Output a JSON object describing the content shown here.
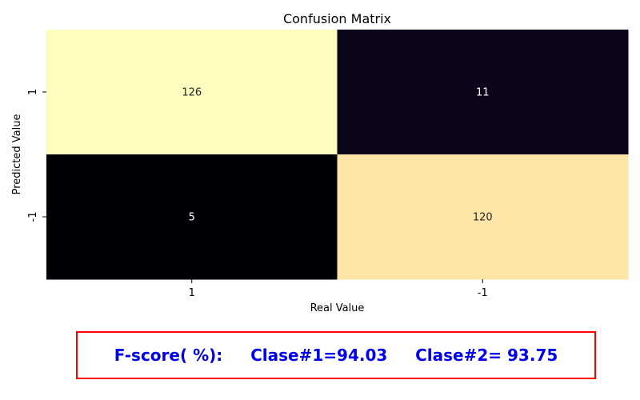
{
  "chart_data": {
    "type": "heatmap",
    "title": "Confusion Matrix",
    "xlabel": "Real Value",
    "ylabel": "Predicted Value",
    "x_categories": [
      "1",
      "-1"
    ],
    "y_categories": [
      "1",
      "-1"
    ],
    "values": [
      [
        126,
        11
      ],
      [
        5,
        120
      ]
    ],
    "colormap": "magma",
    "colorbar": false,
    "annotated": true
  },
  "fscore": {
    "label": "F-score( %):",
    "class1": "Clase#1=94.03",
    "class2": "Clase#2= 93.75",
    "text_color": "#0000ee",
    "border_color": "#ff0000"
  }
}
